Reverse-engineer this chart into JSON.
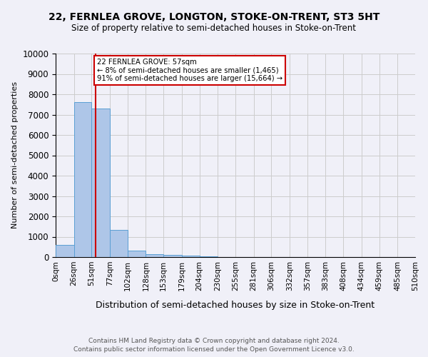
{
  "title": "22, FERNLEA GROVE, LONGTON, STOKE-ON-TRENT, ST3 5HT",
  "subtitle": "Size of property relative to semi-detached houses in Stoke-on-Trent",
  "xlabel": "Distribution of semi-detached houses by size in Stoke-on-Trent",
  "ylabel": "Number of semi-detached properties",
  "footer1": "Contains HM Land Registry data © Crown copyright and database right 2024.",
  "footer2": "Contains public sector information licensed under the Open Government Licence v3.0.",
  "property_label": "22 FERNLEA GROVE: 57sqm",
  "annotation_line1": "← 8% of semi-detached houses are smaller (1,465)",
  "annotation_line2": "91% of semi-detached houses are larger (15,664) →",
  "bin_labels": [
    "0sqm",
    "26sqm",
    "51sqm",
    "77sqm",
    "102sqm",
    "128sqm",
    "153sqm",
    "179sqm",
    "204sqm",
    "230sqm",
    "255sqm",
    "281sqm",
    "306sqm",
    "332sqm",
    "357sqm",
    "383sqm",
    "408sqm",
    "434sqm",
    "459sqm",
    "485sqm",
    "510sqm"
  ],
  "bin_edges": [
    0,
    26,
    51,
    77,
    102,
    128,
    153,
    179,
    204,
    230,
    255,
    281,
    306,
    332,
    357,
    383,
    408,
    434,
    459,
    485,
    510
  ],
  "bar_values": [
    600,
    7600,
    7300,
    1350,
    320,
    150,
    100,
    80,
    50,
    0,
    0,
    0,
    0,
    0,
    0,
    0,
    0,
    0,
    0,
    0
  ],
  "bar_color": "#aec6e8",
  "bar_edge_color": "#5a9fd4",
  "red_line_x": 57,
  "annotation_box_color": "#ffffff",
  "annotation_box_edge": "#cc0000",
  "ylim": [
    0,
    10000
  ],
  "yticks": [
    0,
    1000,
    2000,
    3000,
    4000,
    5000,
    6000,
    7000,
    8000,
    9000,
    10000
  ],
  "grid_color": "#cccccc",
  "background_color": "#f0f0f8"
}
